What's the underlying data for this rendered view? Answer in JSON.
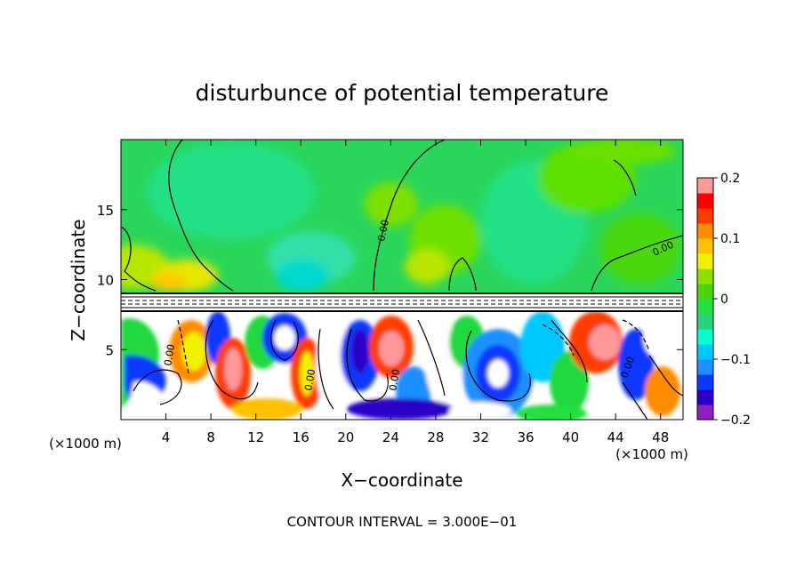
{
  "chart_data": {
    "type": "heatmap",
    "title": "disturbunce of potential temperature",
    "xlabel": "X−coordinate",
    "ylabel": "Z−coordinate",
    "x_unit_left": "(×1000 m)",
    "x_unit_right": "(×1000 m)",
    "xlim": [
      0,
      50
    ],
    "ylim": [
      0,
      20
    ],
    "x_ticks": [
      4,
      8,
      12,
      16,
      20,
      24,
      28,
      32,
      36,
      40,
      44,
      48
    ],
    "y_ticks": [
      5,
      10,
      15
    ],
    "colorbar": {
      "range": [
        -0.2,
        0.2
      ],
      "tick_values": [
        0.2,
        0.1,
        0,
        -0.1,
        -0.2
      ],
      "tick_labels": [
        "0.2",
        "0.1",
        "0",
        "−0.1",
        "−0.2"
      ],
      "colors": [
        "#8f1fbf",
        "#2b00c8",
        "#0a38ff",
        "#1e90ff",
        "#00c8ff",
        "#00ffd2",
        "#2ad07a",
        "#22e040",
        "#4ad50a",
        "#8ee000",
        "#f2f000",
        "#ffc000",
        "#ff8c00",
        "#ff3c00",
        "#ff0000",
        "#ff9898"
      ]
    },
    "contour_labels": [
      "0.00",
      "0.00",
      "0.00",
      "0.00",
      "0.00",
      "0.00"
    ],
    "contour_interval_text": "CONTOUR INTERVAL = 3.000E−01"
  }
}
